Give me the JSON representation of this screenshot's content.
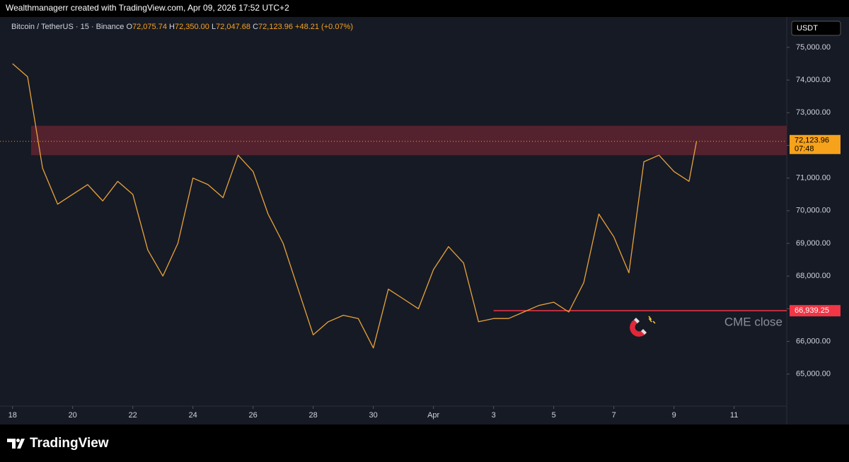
{
  "header": "Wealthmanagerr created with TradingView.com, Apr 09, 2026 17:52 UTC+2",
  "brand": "TradingView",
  "chart_data": {
    "type": "line",
    "symbol_info": "· 15 · Binance",
    "ohlc": [
      {
        "key": "O",
        "value": "72,075.74"
      },
      {
        "key": "H",
        "value": "72,350.00"
      },
      {
        "key": "L",
        "value": "72,047.68"
      },
      {
        "key": "C",
        "value": "72,123.96"
      }
    ],
    "change": "+48.21 (+0.07%)",
    "currency": "USDT",
    "series": [
      {
        "name": "Bitcoin / TetherUS",
        "color": "#e8a33a",
        "x": [
          "2026-03-18T00:00",
          "2026-03-18T12:00",
          "2026-03-19T00:00",
          "2026-03-19T12:00",
          "2026-03-20T00:00",
          "2026-03-20T12:00",
          "2026-03-21T00:00",
          "2026-03-21T12:00",
          "2026-03-22T00:00",
          "2026-03-22T12:00",
          "2026-03-23T00:00",
          "2026-03-23T12:00",
          "2026-03-24T00:00",
          "2026-03-24T12:00",
          "2026-03-25T00:00",
          "2026-03-25T12:00",
          "2026-03-26T00:00",
          "2026-03-26T12:00",
          "2026-03-27T00:00",
          "2026-03-27T12:00",
          "2026-03-28T00:00",
          "2026-03-28T12:00",
          "2026-03-29T00:00",
          "2026-03-29T12:00",
          "2026-03-30T00:00",
          "2026-03-30T12:00",
          "2026-03-31T00:00",
          "2026-03-31T12:00",
          "2026-04-01T00:00",
          "2026-04-01T12:00",
          "2026-04-02T00:00",
          "2026-04-02T12:00",
          "2026-04-03T00:00",
          "2026-04-03T12:00",
          "2026-04-04T00:00",
          "2026-04-04T12:00",
          "2026-04-05T00:00",
          "2026-04-05T12:00",
          "2026-04-06T00:00",
          "2026-04-06T12:00",
          "2026-04-07T00:00",
          "2026-04-07T12:00",
          "2026-04-08T00:00",
          "2026-04-08T12:00",
          "2026-04-09T00:00",
          "2026-04-09T12:00",
          "2026-04-09T18:00"
        ],
        "values": [
          74500,
          74100,
          71300,
          70200,
          70500,
          70800,
          70300,
          70900,
          70500,
          68800,
          68000,
          69000,
          71000,
          70800,
          70400,
          71700,
          71200,
          69900,
          69000,
          67600,
          66200,
          66600,
          66800,
          66700,
          65800,
          67600,
          67300,
          67000,
          68200,
          68900,
          68400,
          66600,
          66700,
          66700,
          66900,
          67100,
          67200,
          66900,
          67800,
          69900,
          69200,
          68100,
          71500,
          71700,
          71200,
          70900,
          72123.96
        ]
      }
    ],
    "xlim": [
      "2026-03-17T14:00",
      "2026-04-12T18:00"
    ],
    "xticks": [
      {
        "value": "2026-03-18",
        "label": "18"
      },
      {
        "value": "2026-03-20",
        "label": "20"
      },
      {
        "value": "2026-03-22",
        "label": "22"
      },
      {
        "value": "2026-03-24",
        "label": "24"
      },
      {
        "value": "2026-03-26",
        "label": "26"
      },
      {
        "value": "2026-03-28",
        "label": "28"
      },
      {
        "value": "2026-03-30",
        "label": "30"
      },
      {
        "value": "2026-04-01",
        "label": "Apr"
      },
      {
        "value": "2026-04-03",
        "label": "3"
      },
      {
        "value": "2026-04-05",
        "label": "5"
      },
      {
        "value": "2026-04-07",
        "label": "7"
      },
      {
        "value": "2026-04-09",
        "label": "9"
      },
      {
        "value": "2026-04-11",
        "label": "11"
      }
    ],
    "ylim": [
      63500,
      75930
    ],
    "yticks": [
      {
        "value": 65000,
        "label": "65,000.00"
      },
      {
        "value": 66000,
        "label": "66,000.00"
      },
      {
        "value": 67000,
        "label": "67,000.00"
      },
      {
        "value": 68000,
        "label": "68,000.00"
      },
      {
        "value": 69000,
        "label": "69,000.00"
      },
      {
        "value": 70000,
        "label": "70,000.00"
      },
      {
        "value": 71000,
        "label": "71,000.00"
      },
      {
        "value": 72000,
        "label": "72,000.00"
      },
      {
        "value": 73000,
        "label": "73,000.00"
      },
      {
        "value": 74000,
        "label": "74,000.00"
      },
      {
        "value": 75000,
        "label": "75,000.00"
      }
    ],
    "zone": {
      "from": 71700,
      "to": 72600,
      "color": "#5b2330"
    },
    "last_price": {
      "value": 72123.96,
      "label": "72,123.96",
      "countdown": "07:48",
      "color": "#f7a21b"
    },
    "cme": {
      "value": 66939.25,
      "label": "66,939.25",
      "text": "CME close",
      "start": "2026-04-03T00:00",
      "color": "#f23645"
    }
  }
}
